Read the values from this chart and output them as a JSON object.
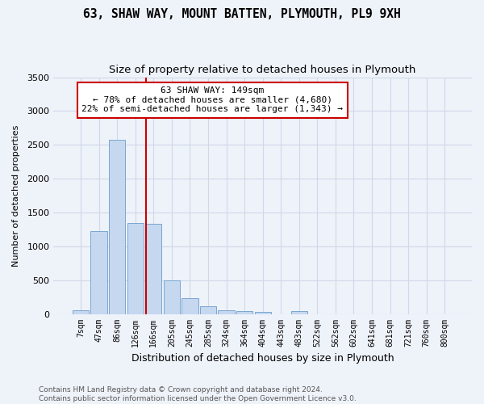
{
  "title1": "63, SHAW WAY, MOUNT BATTEN, PLYMOUTH, PL9 9XH",
  "title2": "Size of property relative to detached houses in Plymouth",
  "xlabel": "Distribution of detached houses by size in Plymouth",
  "ylabel": "Number of detached properties",
  "categories": [
    "7sqm",
    "47sqm",
    "86sqm",
    "126sqm",
    "166sqm",
    "205sqm",
    "245sqm",
    "285sqm",
    "324sqm",
    "364sqm",
    "404sqm",
    "443sqm",
    "483sqm",
    "522sqm",
    "562sqm",
    "602sqm",
    "641sqm",
    "681sqm",
    "721sqm",
    "760sqm",
    "800sqm"
  ],
  "bar_values": [
    50,
    1230,
    2580,
    1350,
    1330,
    500,
    235,
    110,
    50,
    45,
    35,
    0,
    40,
    0,
    0,
    0,
    0,
    0,
    0,
    0,
    0
  ],
  "bar_color": "#c5d8f0",
  "bar_edge_color": "#7ba7d0",
  "vline_color": "#cc0000",
  "annotation_text": "63 SHAW WAY: 149sqm\n← 78% of detached houses are smaller (4,680)\n22% of semi-detached houses are larger (1,343) →",
  "annotation_box_color": "#ffffff",
  "annotation_box_edge": "#cc0000",
  "ylim": [
    0,
    3500
  ],
  "yticks": [
    0,
    500,
    1000,
    1500,
    2000,
    2500,
    3000,
    3500
  ],
  "footer": "Contains HM Land Registry data © Crown copyright and database right 2024.\nContains public sector information licensed under the Open Government Licence v3.0.",
  "background_color": "#eef2f9",
  "plot_bg_color": "#eef2f9",
  "grid_color": "#d0d8e8",
  "title_fontsize": 10.5,
  "subtitle_fontsize": 9.5
}
